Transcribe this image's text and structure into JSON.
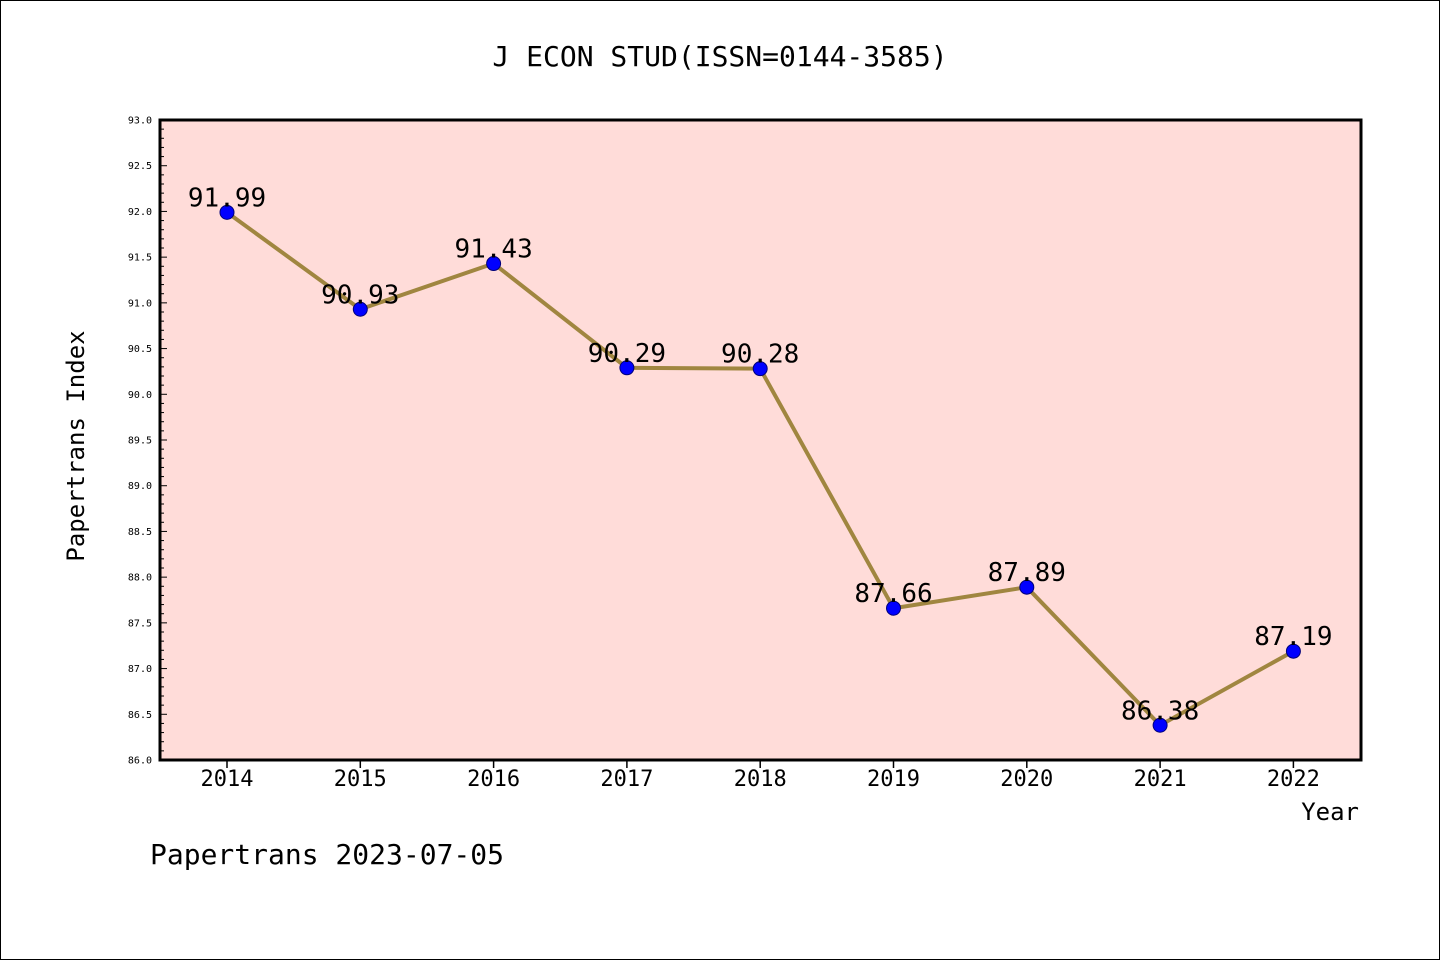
{
  "chart_data": {
    "type": "line",
    "title": "J ECON STUD(ISSN=0144-3585)",
    "xlabel": "Year",
    "ylabel": "Papertrans Index",
    "categories": [
      "2014",
      "2015",
      "2016",
      "2017",
      "2018",
      "2019",
      "2020",
      "2021",
      "2022"
    ],
    "series": [
      {
        "values": [
          91.99,
          90.93,
          91.43,
          90.29,
          90.28,
          87.66,
          87.89,
          86.38,
          87.19
        ],
        "labels": [
          "91.99",
          "90.93",
          "91.43",
          "90.29",
          "90.28",
          "87.66",
          "87.89",
          "86.38",
          "87.19"
        ]
      }
    ],
    "ylim": [
      86.0,
      93.0
    ],
    "yticks": [
      "86.0",
      "86.5",
      "87.0",
      "87.5",
      "88.0",
      "88.5",
      "89.0",
      "89.5",
      "90.0",
      "90.5",
      "91.0",
      "91.5",
      "92.0",
      "92.5",
      "93.0"
    ],
    "grid": false,
    "colors": {
      "plot_background": "#ffdcd9",
      "line": "#a08640",
      "marker": "#0000ff",
      "axes": "#000000"
    }
  },
  "footer": {
    "text": "Papertrans 2023-07-05"
  }
}
